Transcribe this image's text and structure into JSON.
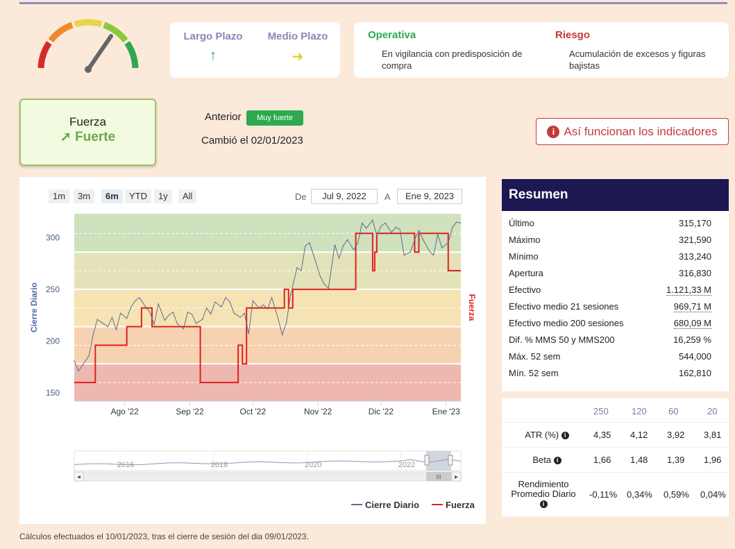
{
  "gauge": {
    "icon": "gauge-icon",
    "colors": [
      "#d62a2a",
      "#ef8a2a",
      "#e8d44a",
      "#8cc83c",
      "#2da94f"
    ],
    "needle_color": "#666666"
  },
  "horizons": [
    {
      "label": "Largo Plazo",
      "arrow": "↑",
      "arrow_icon": "arrow-up-icon",
      "color": "#2da94f"
    },
    {
      "label": "Medio Plazo",
      "arrow": "➔",
      "arrow_icon": "arrow-right-icon",
      "color": "#d6d234"
    }
  ],
  "operativa": {
    "title": "Operativa",
    "text": "En vigilancia con predisposición de compra",
    "color": "#2da94f"
  },
  "riesgo": {
    "title": "Riesgo",
    "text": "Acumulación de excesos y figuras bajistas",
    "color": "#c23a3a"
  },
  "fuerza": {
    "label": "Fuerza",
    "value": "Fuerte",
    "arrow": "➚",
    "color": "#6aa84f"
  },
  "anterior": {
    "label": "Anterior",
    "badge": "Muy fuerte"
  },
  "cambio": "Cambió el 02/01/2023",
  "info_button": {
    "label": "Así funcionan los indicadores",
    "icon": "i"
  },
  "range_buttons": [
    {
      "label": "1m",
      "selected": false
    },
    {
      "label": "3m",
      "selected": false
    },
    {
      "label": "6m",
      "selected": true
    },
    {
      "label": "YTD",
      "selected": false
    },
    {
      "label": "1y",
      "selected": false
    },
    {
      "label": "All",
      "selected": false
    }
  ],
  "date_range": {
    "from_label": "De",
    "from": "Jul 9, 2022",
    "to_label": "A",
    "to": "Ene 9, 2023"
  },
  "chart_data": {
    "type": "line",
    "ylabel": "Cierre Diario",
    "y2label": "Fuerza",
    "ylim": [
      142,
      323
    ],
    "yticks": [
      150,
      200,
      250,
      300
    ],
    "xticks": [
      {
        "label": "Ago '22",
        "day": 24
      },
      {
        "label": "Sep '22",
        "day": 55
      },
      {
        "label": "Oct '22",
        "day": 85
      },
      {
        "label": "Nov '22",
        "day": 116
      },
      {
        "label": "Dic '22",
        "day": 146
      },
      {
        "label": "Ene '23",
        "day": 177
      }
    ],
    "xlim_days": [
      0,
      184
    ],
    "bands": [
      {
        "from": 142,
        "to": 178,
        "color": "#eeb7b0"
      },
      {
        "from": 178,
        "to": 214,
        "color": "#f6d2b0"
      },
      {
        "from": 214,
        "to": 250,
        "color": "#f6e3b4"
      },
      {
        "from": 250,
        "to": 286,
        "color": "#e4e2b8"
      },
      {
        "from": 286,
        "to": 323,
        "color": "#cfe1bd"
      }
    ],
    "band_lines": [
      160,
      196,
      232,
      268,
      304
    ],
    "series": [
      {
        "name": "Cierre Diario",
        "color": "#5a6e90",
        "days": [
          0,
          2,
          4,
          7,
          9,
          11,
          13,
          16,
          18,
          20,
          22,
          25,
          27,
          29,
          31,
          34,
          36,
          38,
          40,
          43,
          45,
          47,
          49,
          52,
          54,
          56,
          58,
          61,
          63,
          65,
          67,
          70,
          72,
          74,
          76,
          79,
          81,
          83,
          85,
          88,
          90,
          92,
          94,
          97,
          99,
          101,
          103,
          106,
          108,
          110,
          112,
          115,
          117,
          119,
          121,
          124,
          126,
          128,
          130,
          133,
          135,
          137,
          139,
          142,
          144,
          146,
          148,
          151,
          153,
          155,
          157,
          160,
          162,
          164,
          166,
          169,
          171,
          173,
          175,
          178,
          180,
          182,
          184
        ],
        "values": [
          181,
          171,
          177,
          186,
          206,
          221,
          218,
          214,
          223,
          211,
          227,
          222,
          233,
          239,
          242,
          233,
          228,
          216,
          236,
          220,
          225,
          228,
          217,
          212,
          228,
          226,
          217,
          221,
          232,
          226,
          238,
          233,
          242,
          238,
          227,
          223,
          227,
          207,
          239,
          232,
          235,
          231,
          242,
          222,
          206,
          218,
          245,
          271,
          268,
          292,
          295,
          276,
          263,
          255,
          251,
          293,
          280,
          292,
          298,
          288,
          295,
          314,
          309,
          317,
          302,
          311,
          314,
          305,
          310,
          308,
          283,
          286,
          298,
          307,
          298,
          287,
          283,
          303,
          290,
          295,
          310,
          315,
          314
        ]
      },
      {
        "name": "Fuerza",
        "color": "#e02020",
        "days": [
          0,
          10,
          10,
          25,
          25,
          32,
          32,
          37,
          37,
          60,
          60,
          78,
          78,
          80,
          80,
          82,
          82,
          100,
          100,
          102,
          102,
          104,
          104,
          134,
          134,
          142,
          142,
          143,
          143,
          144,
          144,
          162,
          162,
          164,
          164,
          178,
          178,
          184
        ],
        "values": [
          160,
          160,
          196,
          196,
          214,
          214,
          232,
          232,
          214,
          214,
          160,
          160,
          196,
          196,
          178,
          178,
          232,
          232,
          250,
          250,
          232,
          232,
          250,
          250,
          304,
          304,
          268,
          268,
          286,
          286,
          304,
          304,
          286,
          286,
          304,
          304,
          268,
          268
        ]
      }
    ],
    "navigator": {
      "labels": [
        "2016",
        "2018",
        "2020",
        "2022"
      ],
      "scroll_grip": "III"
    },
    "legend": {
      "position": "bottom-right",
      "items": [
        "Cierre Diario",
        "Fuerza"
      ]
    }
  },
  "resumen": {
    "title": "Resumen",
    "rows": [
      {
        "label": "Último",
        "value": "315,170",
        "underline": false
      },
      {
        "label": "Máximo",
        "value": "321,590",
        "underline": false
      },
      {
        "label": "Mínimo",
        "value": "313,240",
        "underline": false
      },
      {
        "label": "Apertura",
        "value": "316,830",
        "underline": false
      },
      {
        "label": "Efectivo",
        "value": "1.121,33 M",
        "underline": true
      },
      {
        "label": "Efectivo medio 21 sesiones",
        "value": "969,71 M",
        "underline": true
      },
      {
        "label": "Efectivo medio 200 sesiones",
        "value": "680,09 M",
        "underline": true
      },
      {
        "label": "Dif. % MMS 50 y MMS200",
        "value": "16,259 %",
        "underline": false
      },
      {
        "label": "Máx. 52 sem",
        "value": "544,000",
        "underline": false
      },
      {
        "label": "Mín. 52 sem",
        "value": "162,810",
        "underline": false
      }
    ]
  },
  "stats": {
    "periods": [
      "250",
      "120",
      "60",
      "20"
    ],
    "rows": [
      {
        "label": "ATR (%)",
        "values": [
          "4,35",
          "4,12",
          "3,92",
          "3,81"
        ]
      },
      {
        "label": "Beta",
        "values": [
          "1,66",
          "1,48",
          "1,39",
          "1,96"
        ]
      },
      {
        "label": "Rendimiento Promedio Diario",
        "values": [
          "-0,11%",
          "0,34%",
          "0,59%",
          "0,04%"
        ]
      }
    ],
    "info_icon": "i"
  },
  "footnote": "Cálculos efectuados el 10/01/2023, tras el cierre de sesión del dia 09/01/2023."
}
